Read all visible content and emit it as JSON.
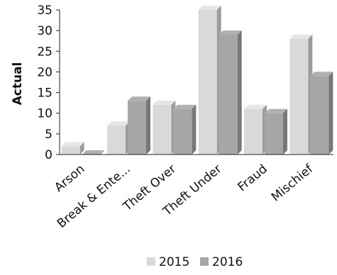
{
  "chart_data": {
    "type": "bar",
    "categories": [
      "Arson",
      "Break & Ente...",
      "Theft Over",
      "Theft Under",
      "Fraud",
      "Mischief"
    ],
    "series": [
      {
        "name": "2015",
        "values": [
          2,
          7,
          12,
          35,
          11,
          28
        ],
        "color": "#d9d9d9"
      },
      {
        "name": "2016",
        "values": [
          0,
          13,
          11,
          29,
          10,
          19
        ],
        "color": "#a6a6a6"
      }
    ],
    "xlabel": "",
    "ylabel": "Actual",
    "ylim": [
      0,
      35
    ],
    "yticks": [
      0,
      5,
      10,
      15,
      20,
      25,
      30,
      35
    ],
    "grid": false,
    "legend_position": "bottom"
  }
}
